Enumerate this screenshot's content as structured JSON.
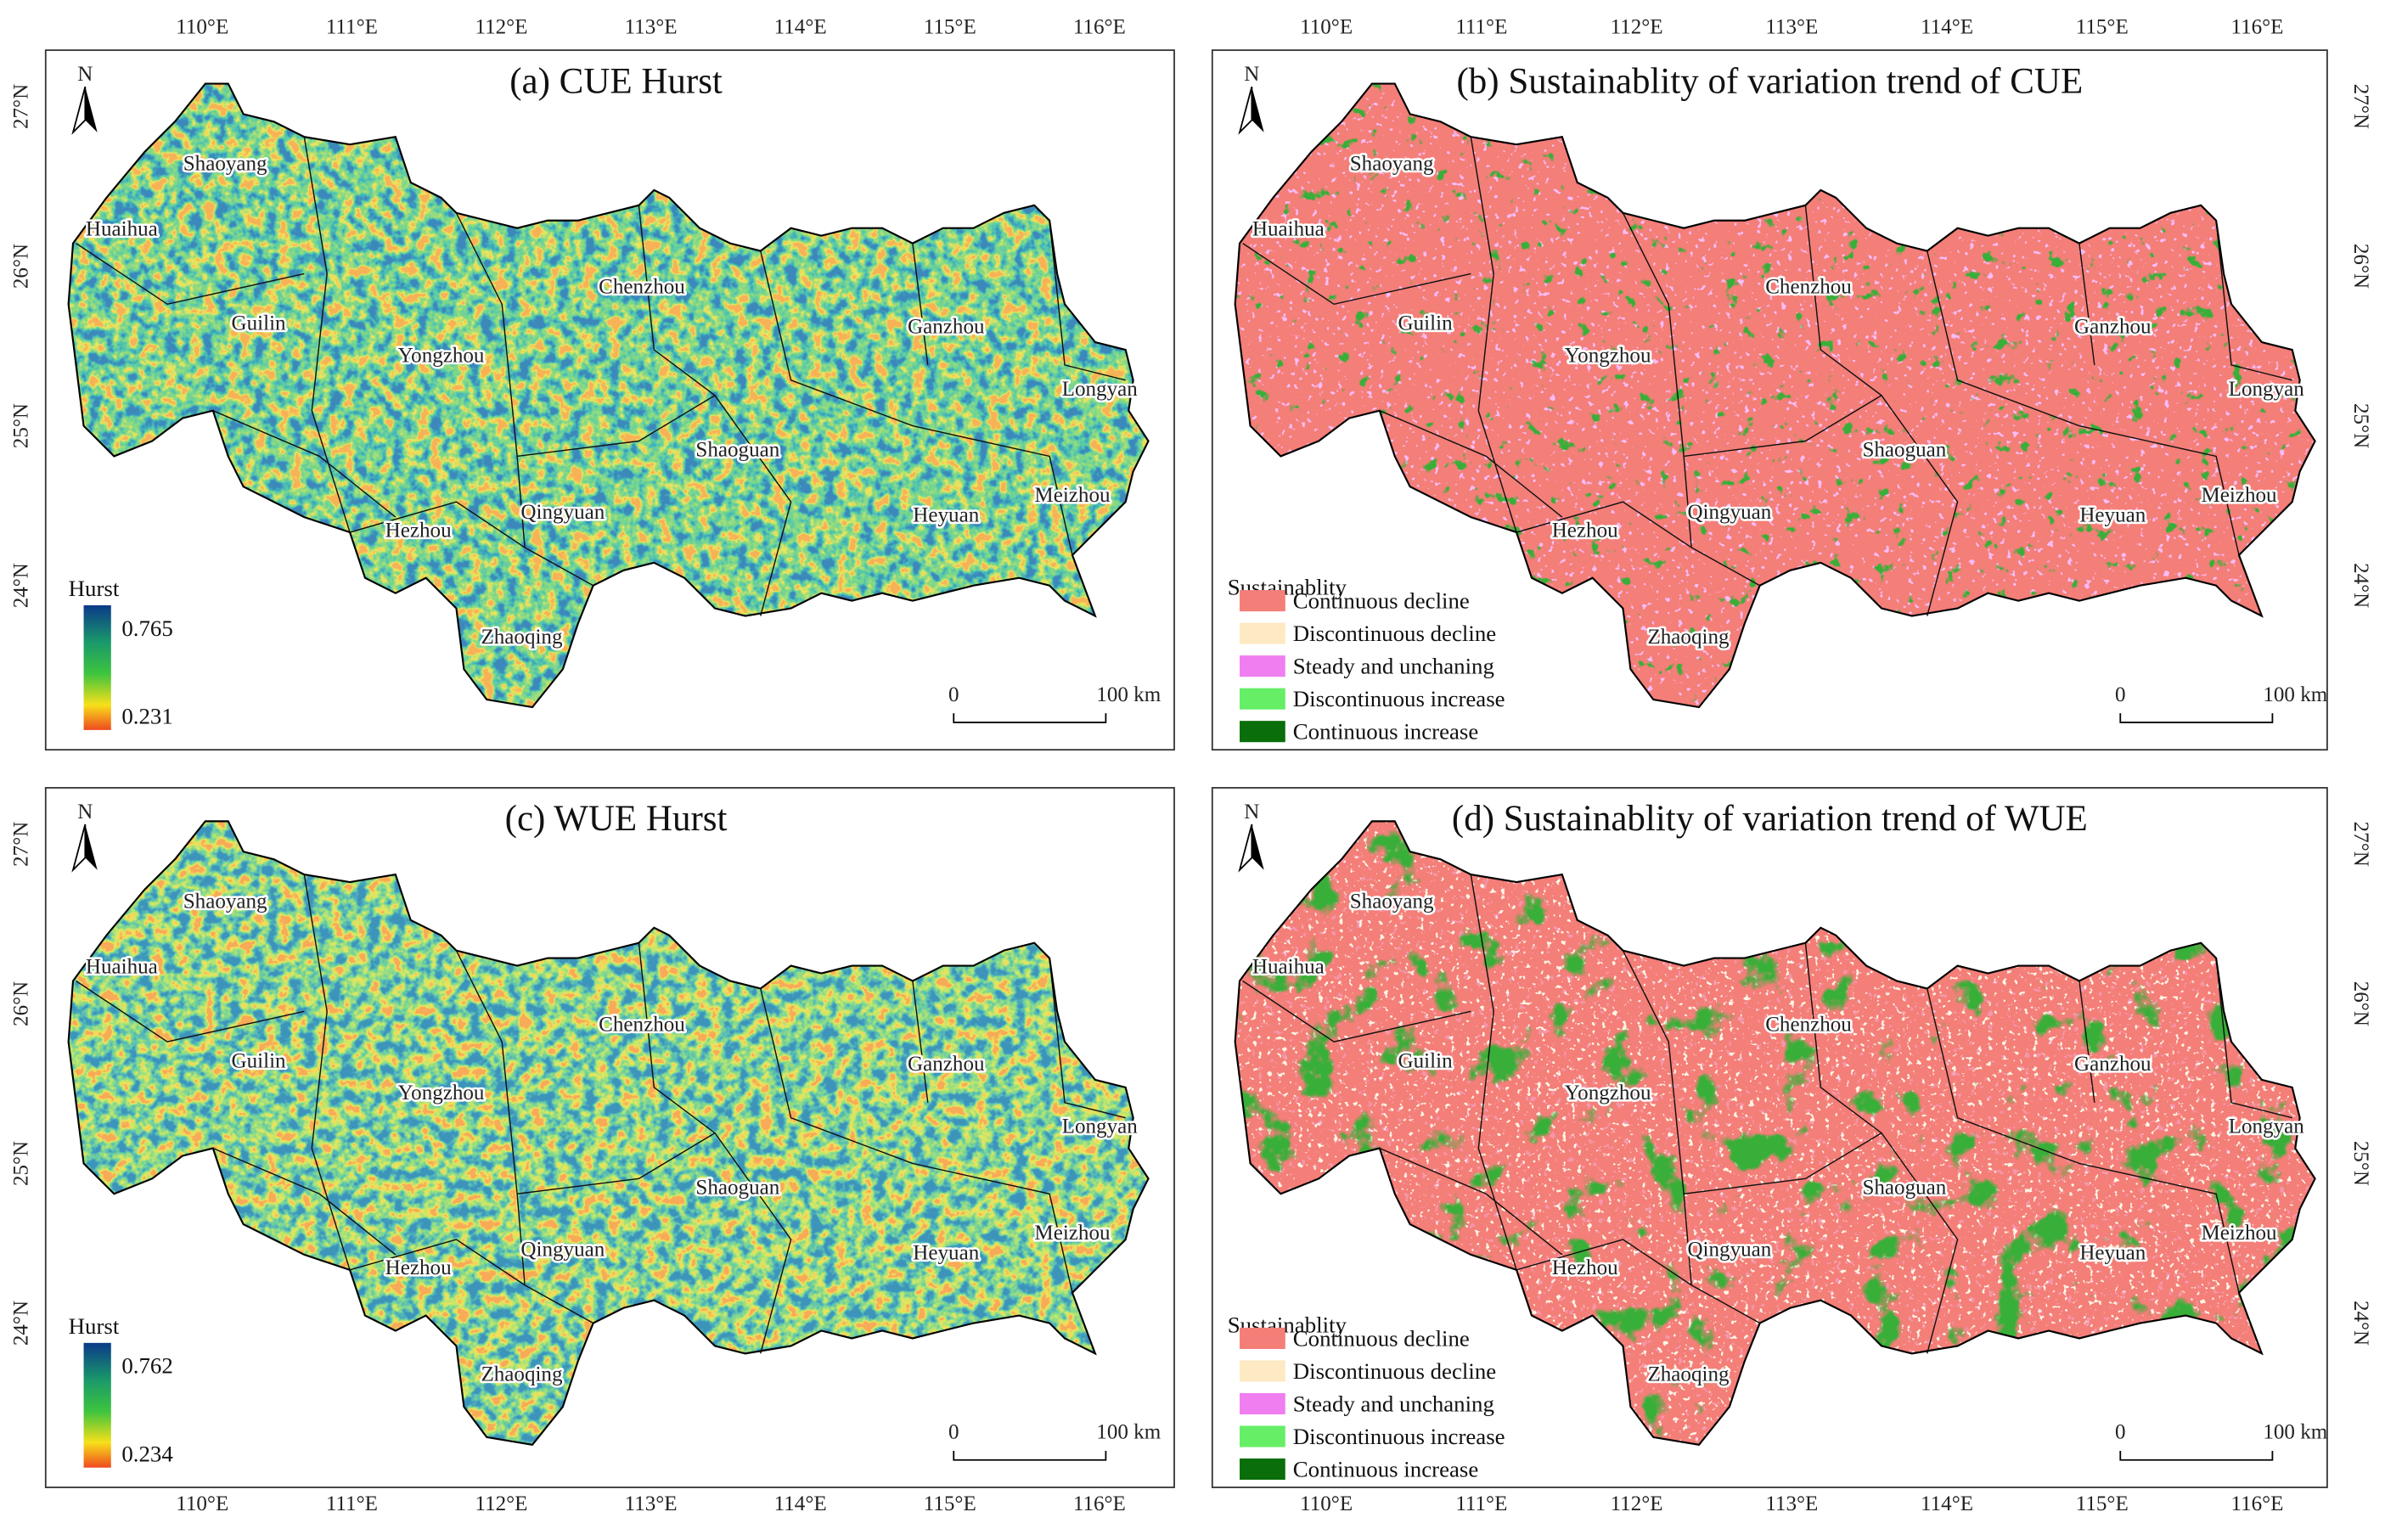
{
  "panels": [
    {
      "title": "(a) CUE Hurst",
      "north": "N",
      "legend": {
        "title": "Hurst",
        "max": 0.765,
        "min": 0.231
      },
      "scale_bar": {
        "start": "0",
        "end": "100 km"
      }
    },
    {
      "title": "(b) Sustainablity of variation trend of CUE",
      "north": "N",
      "legend": {
        "title": "Sustainablity",
        "items": [
          {
            "label": "Continuous decline",
            "color": "#f47e78"
          },
          {
            "label": "Discontinuous decline",
            "color": "#fde9c2"
          },
          {
            "label": "Steady and unchaning",
            "color": "#f07ef0"
          },
          {
            "label": "Discontinuous increase",
            "color": "#66ee66"
          },
          {
            "label": "Continuous increase",
            "color": "#0a6e0a"
          }
        ]
      },
      "scale_bar": {
        "start": "0",
        "end": "100 km"
      }
    },
    {
      "title": "(c) WUE Hurst",
      "north": "N",
      "legend": {
        "title": "Hurst",
        "max": 0.762,
        "min": 0.234
      },
      "scale_bar": {
        "start": "0",
        "end": "100 km"
      }
    },
    {
      "title": "(d) Sustainablity of variation trend of WUE",
      "north": "N",
      "legend": {
        "title": "Sustainablity",
        "items": [
          {
            "label": "Continuous decline",
            "color": "#f47e78"
          },
          {
            "label": "Discontinuous decline",
            "color": "#fde9c2"
          },
          {
            "label": "Steady and unchaning",
            "color": "#f07ef0"
          },
          {
            "label": "Discontinuous increase",
            "color": "#66ee66"
          },
          {
            "label": "Continuous increase",
            "color": "#0a6e0a"
          }
        ]
      },
      "scale_bar": {
        "start": "0",
        "end": "100 km"
      }
    }
  ],
  "cities": [
    "Shaoyang",
    "Huaihua",
    "Chenzhou",
    "Guilin",
    "Ganzhou",
    "Yongzhou",
    "Longyan",
    "Shaoguan",
    "Meizhou",
    "Qingyuan",
    "Heyuan",
    "Hezhou",
    "Zhaoqing"
  ],
  "lon_labels": [
    "110°E",
    "111°E",
    "112°E",
    "113°E",
    "114°E",
    "115°E",
    "116°E"
  ],
  "lat_labels": [
    "27°N",
    "26°N",
    "25°N",
    "24°N"
  ]
}
